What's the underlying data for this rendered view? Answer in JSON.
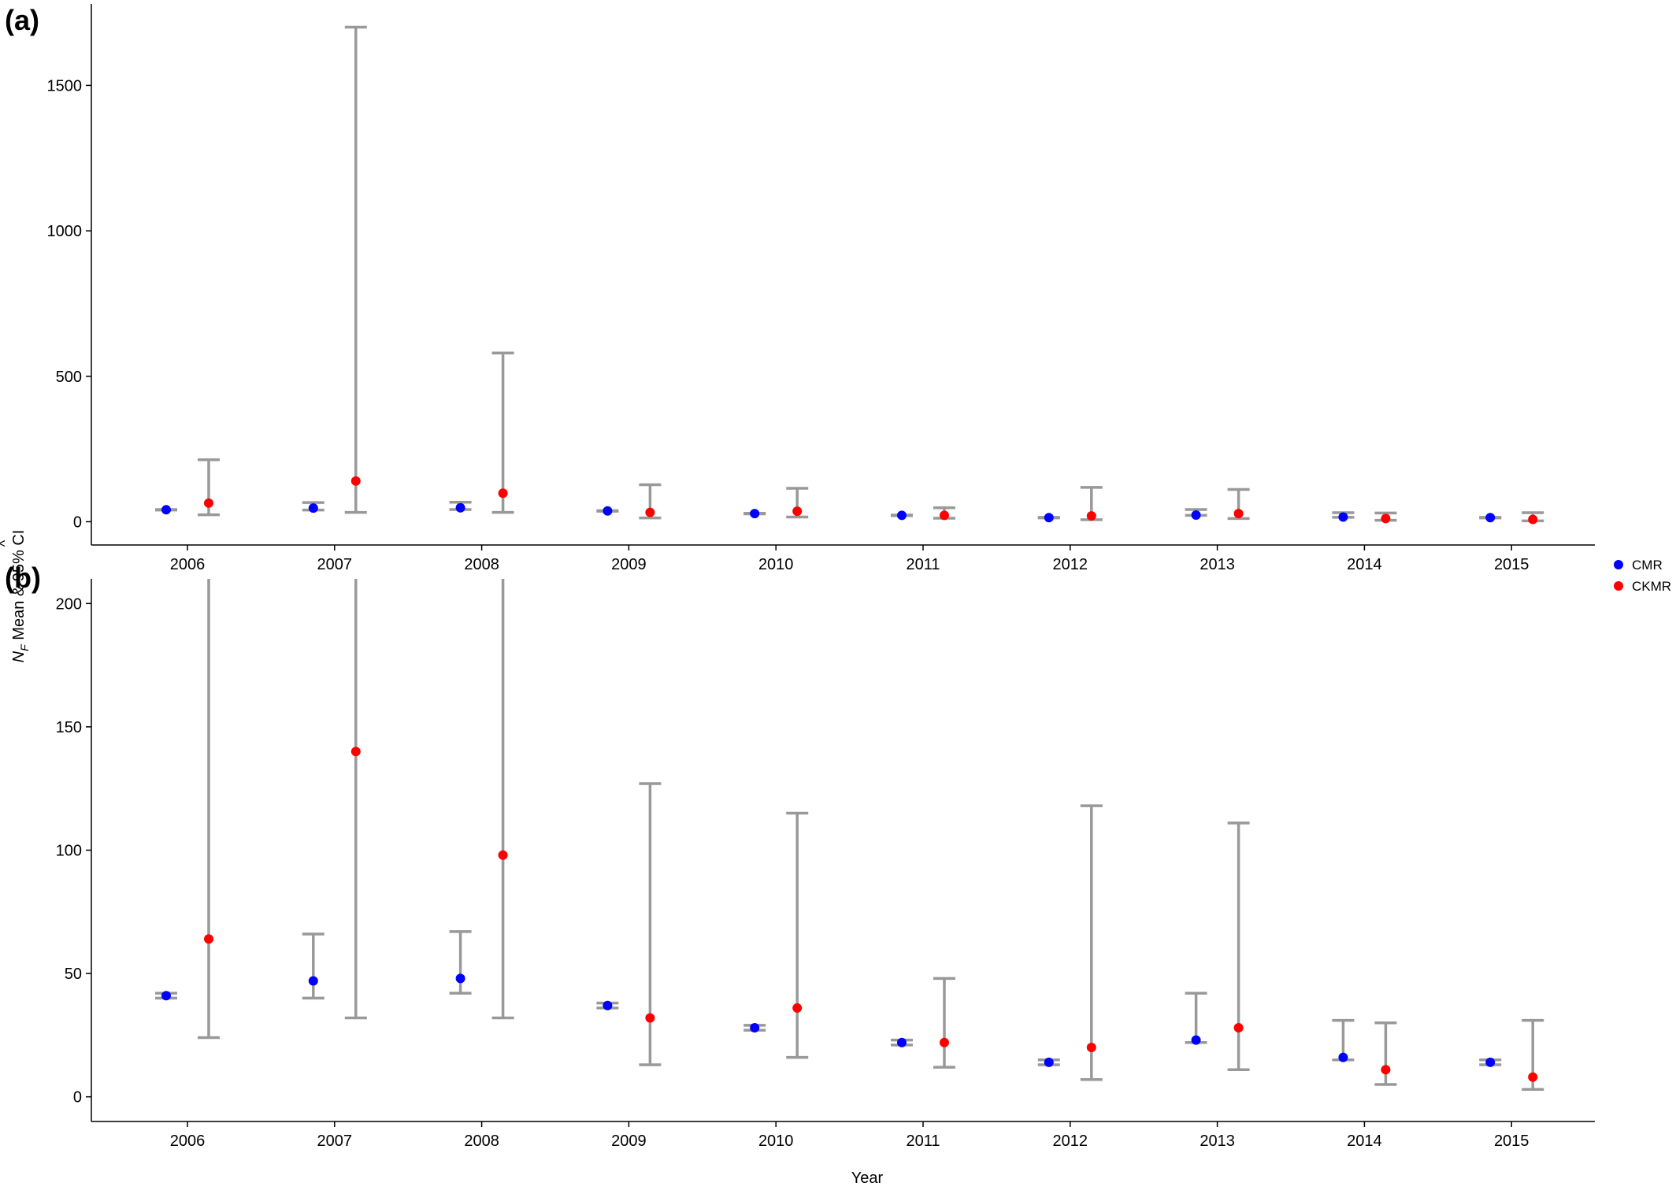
{
  "colors": {
    "CMR": "#0000ff",
    "CKMR": "#ff0000",
    "errorbar": "#999999"
  },
  "chart_data": {
    "type": "scatter",
    "subtype": "point-with-errorbars",
    "xlabel": "Year",
    "ylabel": "N_F Mean & 95% CI",
    "ylabel_parts": {
      "hat": "^",
      "symbol": "N",
      "subscript": "F",
      "rest": " Mean & 95% CI"
    },
    "categories": [
      "2006",
      "2007",
      "2008",
      "2009",
      "2010",
      "2011",
      "2012",
      "2013",
      "2014",
      "2015"
    ],
    "legend": {
      "position": "right",
      "entries": [
        "CMR",
        "CKMR"
      ]
    },
    "grid": false,
    "series": [
      {
        "name": "CMR",
        "color": "#0000ff",
        "mean": [
          41,
          47,
          48,
          37,
          28,
          22,
          14,
          23,
          16,
          14
        ],
        "lower": [
          40,
          40,
          42,
          36,
          27,
          21,
          13,
          22,
          15,
          13
        ],
        "upper": [
          42,
          66,
          67,
          38,
          29,
          23,
          15,
          42,
          31,
          15
        ]
      },
      {
        "name": "CKMR",
        "color": "#ff0000",
        "mean": [
          64,
          140,
          98,
          32,
          36,
          22,
          20,
          28,
          11,
          8
        ],
        "lower": [
          24,
          32,
          32,
          13,
          16,
          12,
          7,
          11,
          5,
          3
        ],
        "upper": [
          213,
          1700,
          580,
          127,
          115,
          48,
          118,
          111,
          30,
          31
        ]
      }
    ],
    "panels": [
      {
        "label": "(a)",
        "ylim": [
          -80,
          1780
        ],
        "yticks": [
          0,
          500,
          1000,
          1500
        ]
      },
      {
        "label": "(b)",
        "ylim": [
          -10,
          210
        ],
        "yticks": [
          0,
          50,
          100,
          150,
          200
        ]
      }
    ]
  }
}
